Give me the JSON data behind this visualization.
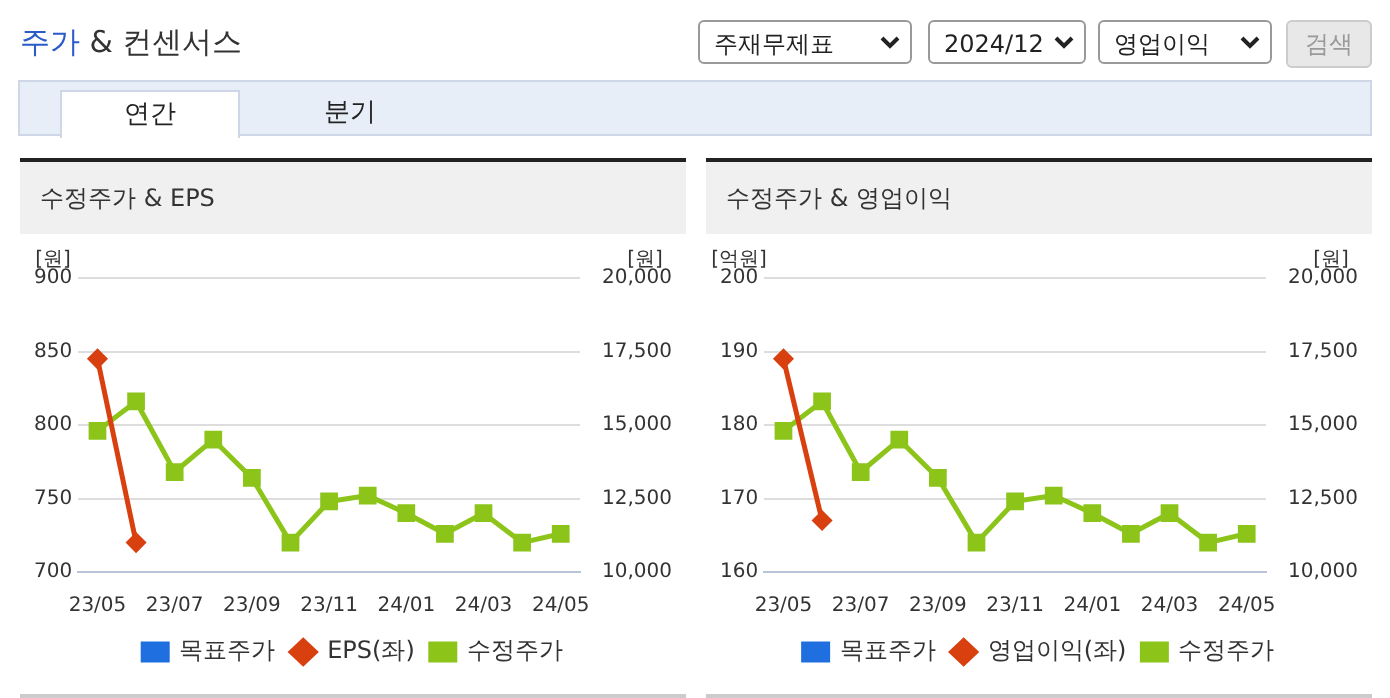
{
  "chart_data": [
    {
      "type": "other",
      "title": "주가 & 컨센서스",
      "annotations": [
        "주재무제표",
        "2024/12",
        "영업이익",
        "검색",
        "연간",
        "분기"
      ]
    },
    {
      "type": "line",
      "title": "수정주가 & EPS",
      "ylabel": "[원]",
      "y2label": "[원]",
      "categories": [
        "23/05",
        null,
        "23/07",
        null,
        "23/09",
        null,
        "23/11",
        null,
        "24/01",
        null,
        "24/03",
        null,
        "24/05"
      ],
      "series": [
        {
          "name": "목표주가",
          "color": "#1f6fe0",
          "marker": "square",
          "values": [
            null,
            null,
            null,
            null,
            null,
            null,
            null,
            null,
            null,
            null,
            null,
            null,
            null
          ]
        },
        {
          "name": "EPS(좌)",
          "color": "#d9400f",
          "marker": "diamond",
          "values": [
            845,
            720,
            null,
            null,
            null,
            null,
            null,
            null,
            null,
            null,
            null,
            null,
            null
          ]
        },
        {
          "name": "수정주가",
          "color": "#8cc41a",
          "marker": "square",
          "axis": "y2",
          "values": [
            14800,
            15800,
            13400,
            14500,
            13200,
            11000,
            12400,
            12600,
            12000,
            11300,
            12000,
            11000,
            11300
          ]
        }
      ],
      "ylim": [
        700,
        900
      ],
      "yticks": [
        700,
        750,
        800,
        850,
        900
      ],
      "y2lim": [
        10000,
        20000
      ],
      "y2ticks": [
        {
          "value": 10000,
          "label": "10,000"
        },
        {
          "value": 12500,
          "label": "12,500"
        },
        {
          "value": 15000,
          "label": "15,000"
        },
        {
          "value": 17500,
          "label": "17,500"
        },
        {
          "value": 20000,
          "label": "20,000"
        }
      ],
      "grid": "y",
      "legend": "bottom",
      "line_style": "solid"
    },
    {
      "type": "line",
      "title": "수정주가 & 영업이익",
      "ylabel": "[억원]",
      "y2label": "[원]",
      "categories": [
        "23/05",
        null,
        "23/07",
        null,
        "23/09",
        null,
        "23/11",
        null,
        "24/01",
        null,
        "24/03",
        null,
        "24/05"
      ],
      "series": [
        {
          "name": "목표주가",
          "color": "#1f6fe0",
          "marker": "square",
          "values": [
            null,
            null,
            null,
            null,
            null,
            null,
            null,
            null,
            null,
            null,
            null,
            null,
            null
          ]
        },
        {
          "name": "영업이익(좌)",
          "color": "#d9400f",
          "marker": "diamond",
          "values": [
            189,
            167,
            null,
            null,
            null,
            null,
            null,
            null,
            null,
            null,
            null,
            null,
            null
          ]
        },
        {
          "name": "수정주가",
          "color": "#8cc41a",
          "marker": "square",
          "axis": "y2",
          "values": [
            14800,
            15800,
            13400,
            14500,
            13200,
            11000,
            12400,
            12600,
            12000,
            11300,
            12000,
            11000,
            11300
          ]
        }
      ],
      "ylim": [
        160,
        200
      ],
      "yticks": [
        160,
        170,
        180,
        190,
        200
      ],
      "y2lim": [
        10000,
        20000
      ],
      "y2ticks": [
        {
          "value": 10000,
          "label": "10,000"
        },
        {
          "value": 12500,
          "label": "12,500"
        },
        {
          "value": 15000,
          "label": "15,000"
        },
        {
          "value": 17500,
          "label": "17,500"
        },
        {
          "value": 20000,
          "label": "20,000"
        }
      ],
      "grid": "y",
      "legend": "bottom",
      "line_style": "solid"
    }
  ]
}
